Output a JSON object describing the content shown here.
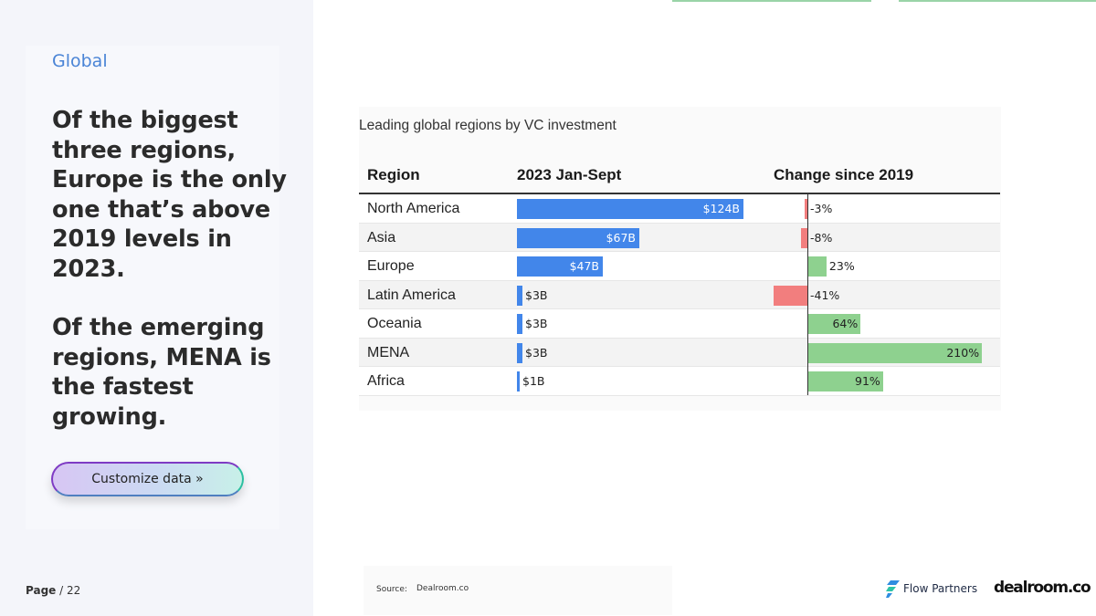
{
  "section_label": "Global",
  "headline": {
    "paragraph_1": "Of the biggest three regions, Europe is the only one that’s above 2019 levels in 2023.",
    "paragraph_2": "Of the emerging regions, MENA is the fastest growing."
  },
  "customize_button": "Customize data »",
  "page": {
    "label": "Page",
    "number": "/ 22"
  },
  "chart_data": {
    "type": "table",
    "title": "Leading global regions by VC investment",
    "columns": [
      "Region",
      "2023 Jan-Sept",
      "Change since 2019"
    ],
    "rows": [
      {
        "region": "North America",
        "investment_usd_b": 124,
        "investment_label": "$124B",
        "change_pct": -3,
        "change_label": "-3%"
      },
      {
        "region": "Asia",
        "investment_usd_b": 67,
        "investment_label": "$67B",
        "change_pct": -8,
        "change_label": "-8%"
      },
      {
        "region": "Europe",
        "investment_usd_b": 47,
        "investment_label": "$47B",
        "change_pct": 23,
        "change_label": "23%"
      },
      {
        "region": "Latin America",
        "investment_usd_b": 3,
        "investment_label": "$3B",
        "change_pct": -41,
        "change_label": "-41%"
      },
      {
        "region": "Oceania",
        "investment_usd_b": 3,
        "investment_label": "$3B",
        "change_pct": 64,
        "change_label": "64%"
      },
      {
        "region": "MENA",
        "investment_usd_b": 3,
        "investment_label": "$3B",
        "change_pct": 210,
        "change_label": "210%"
      },
      {
        "region": "Africa",
        "investment_usd_b": 1,
        "investment_label": "$1B",
        "change_pct": 91,
        "change_label": "91%"
      }
    ],
    "colors": {
      "investment_bar": "#4286ea",
      "positive_change": "#8ed18f",
      "negative_change": "#f27e7e"
    }
  },
  "footer": {
    "source_label": "Source:",
    "source_value": "Dealroom.co",
    "logos": {
      "flow_partners": "Flow Partners",
      "dealroom": "dealroom.co"
    }
  }
}
